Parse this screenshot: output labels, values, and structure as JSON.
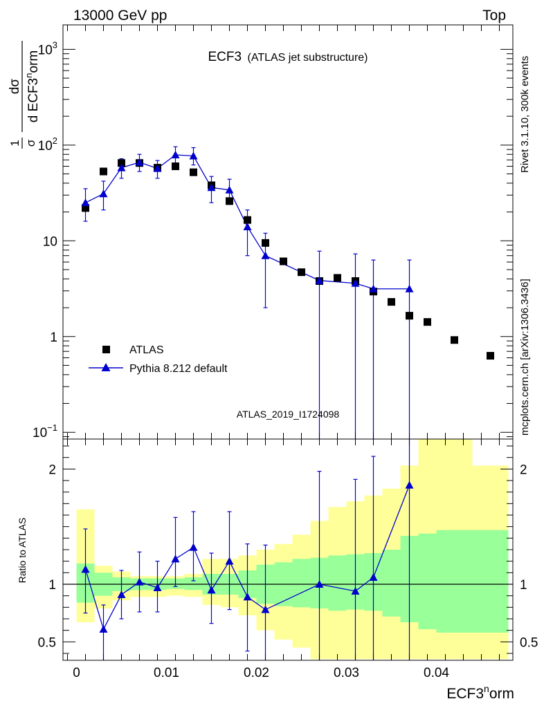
{
  "header": {
    "left": "13000 GeV pp",
    "right": "Top"
  },
  "side_labels": {
    "rivet": "Rivet 3.1.10,  300k events",
    "mcplots": "mcplots.cern.ch [arXiv:1306.3436]"
  },
  "main_panel": {
    "title_main": "ECF3",
    "title_sub": "(ATLAS jet substructure)",
    "analysis_id": "ATLAS_2019_I1724098",
    "ylabel_frac_num": "1",
    "ylabel_frac_den": "σ",
    "ylabel_d_num": "dσ",
    "ylabel_d_den": "d ECF3",
    "ylabel_d_sup": "n",
    "ylabel_d_tail": "orm",
    "y_scale": "log",
    "ylim": [
      0.085,
      1800
    ],
    "y_ticks": [
      {
        "value": 0.1,
        "base": "10",
        "exp": "−1"
      },
      {
        "value": 1,
        "base": "1",
        "exp": ""
      },
      {
        "value": 10,
        "base": "10",
        "exp": ""
      },
      {
        "value": 100,
        "base": "10",
        "exp": "2"
      },
      {
        "value": 1000,
        "base": "10",
        "exp": "3"
      }
    ],
    "legend": [
      {
        "label": "ATLAS",
        "marker": "square",
        "color": "#000000"
      },
      {
        "label": "Pythia 8.212 default",
        "marker": "triangle",
        "color": "#0000cc"
      }
    ]
  },
  "ratio_panel": {
    "ylabel": "Ratio to ATLAS",
    "ylim": [
      0.34,
      2.26
    ],
    "y_ticks": [
      {
        "value": 0.5,
        "label": "0.5"
      },
      {
        "value": 1,
        "label": "1"
      },
      {
        "value": 2,
        "label": "2"
      }
    ]
  },
  "xaxis": {
    "label_base": "ECF3",
    "label_sup": "n",
    "label_tail": "orm",
    "xlim": [
      -0.0015,
      0.0485
    ],
    "ticks": [
      {
        "value": 0,
        "label": "0"
      },
      {
        "value": 0.01,
        "label": "0.01"
      },
      {
        "value": 0.02,
        "label": "0.02"
      },
      {
        "value": 0.03,
        "label": "0.03"
      },
      {
        "value": 0.04,
        "label": "0.04"
      }
    ]
  },
  "chart_data": {
    "type": "scatter",
    "colors": {
      "data": "#000000",
      "mc": "#0000cc",
      "band_inner": "#99ff99",
      "band_outer": "#ffff99"
    },
    "atlas": {
      "name": "ATLAS",
      "x": [
        0.001,
        0.003,
        0.005,
        0.007,
        0.009,
        0.011,
        0.013,
        0.015,
        0.017,
        0.019,
        0.021,
        0.023,
        0.025,
        0.027,
        0.029,
        0.031,
        0.033,
        0.035,
        0.037,
        0.039,
        0.042,
        0.046
      ],
      "y": [
        22,
        53,
        65,
        65,
        58,
        60,
        52,
        38,
        26,
        16.5,
        9.5,
        6.1,
        4.7,
        3.8,
        4.1,
        3.8,
        2.95,
        2.3,
        1.65,
        1.42,
        0.92,
        0.63
      ]
    },
    "pythia": {
      "name": "Pythia 8.212 default",
      "x": [
        0.001,
        0.003,
        0.005,
        0.007,
        0.009,
        0.011,
        0.013,
        0.015,
        0.017,
        0.019,
        0.021,
        0.027,
        0.031,
        0.033,
        0.037
      ],
      "y": [
        25,
        31,
        58,
        66,
        57,
        79,
        77,
        36,
        34,
        14,
        7,
        3.85,
        3.6,
        3.15,
        3.15
      ],
      "yerr_low": [
        16,
        21,
        45,
        53,
        45,
        64,
        62,
        25,
        24,
        7,
        2,
        0.05,
        0.05,
        0.05,
        0.05
      ],
      "yerr_high": [
        35,
        42,
        72,
        80,
        69,
        96,
        94,
        47,
        44,
        21,
        12,
        7.8,
        7.3,
        6.3,
        6.3
      ]
    },
    "ratio": {
      "x": [
        0.001,
        0.003,
        0.005,
        0.007,
        0.009,
        0.011,
        0.013,
        0.015,
        0.017,
        0.019,
        0.021,
        0.027,
        0.031,
        0.033,
        0.037
      ],
      "y": [
        1.13,
        0.61,
        0.91,
        1.02,
        0.97,
        1.22,
        1.32,
        0.95,
        1.2,
        0.89,
        0.78,
        1.0,
        0.94,
        1.06,
        1.86
      ],
      "yerr_low": [
        0.75,
        0.3,
        0.7,
        0.76,
        0.76,
        0.98,
        1.03,
        0.66,
        0.78,
        0.42,
        0.2,
        0.0,
        0.0,
        0.0,
        0.0
      ],
      "yerr_high": [
        1.48,
        0.82,
        1.12,
        1.28,
        1.2,
        1.58,
        1.63,
        1.27,
        1.63,
        1.35,
        1.34,
        1.98,
        1.91,
        2.11,
        2.35
      ]
    },
    "bands": {
      "edges": [
        0.0,
        0.002,
        0.004,
        0.006,
        0.008,
        0.01,
        0.012,
        0.014,
        0.016,
        0.018,
        0.02,
        0.022,
        0.024,
        0.026,
        0.028,
        0.03,
        0.032,
        0.034,
        0.036,
        0.038,
        0.04,
        0.044,
        0.048
      ],
      "inner_low": [
        0.84,
        0.9,
        0.94,
        0.95,
        0.95,
        0.96,
        0.95,
        0.91,
        0.91,
        0.88,
        0.83,
        0.81,
        0.8,
        0.79,
        0.77,
        0.78,
        0.77,
        0.72,
        0.67,
        0.61,
        0.58,
        0.58
      ],
      "inner_high": [
        1.18,
        1.1,
        1.06,
        1.05,
        1.05,
        1.05,
        1.06,
        1.09,
        1.09,
        1.12,
        1.17,
        1.19,
        1.22,
        1.23,
        1.25,
        1.26,
        1.27,
        1.3,
        1.42,
        1.44,
        1.47,
        1.47
      ],
      "outer_low": [
        0.67,
        0.79,
        0.86,
        0.89,
        0.89,
        0.9,
        0.89,
        0.82,
        0.8,
        0.73,
        0.6,
        0.52,
        0.45,
        0.35,
        0.35,
        0.35,
        0.35,
        0.35,
        0.35,
        0.35,
        0.35,
        0.35
      ],
      "outer_high": [
        1.65,
        1.16,
        1.11,
        1.07,
        1.07,
        1.07,
        1.09,
        1.22,
        1.22,
        1.25,
        1.3,
        1.35,
        1.43,
        1.55,
        1.67,
        1.72,
        1.77,
        1.83,
        2.03,
        2.28,
        2.28,
        2.03
      ]
    }
  }
}
